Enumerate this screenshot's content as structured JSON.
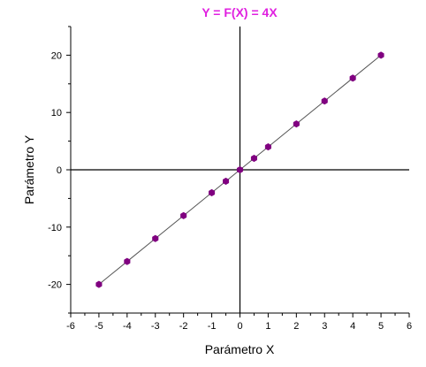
{
  "chart_data": {
    "type": "scatter",
    "title": "Y = F(X) = 4X",
    "xlabel": "Parámetro X",
    "ylabel": "Parámetro Y",
    "xlim": [
      -6,
      6
    ],
    "ylim": [
      -25,
      25
    ],
    "x_ticks": [
      -6,
      -5,
      -4,
      -3,
      -2,
      -1,
      0,
      1,
      2,
      3,
      4,
      5,
      6
    ],
    "y_ticks": [
      -20,
      -10,
      0,
      10,
      20
    ],
    "x_tick_labels": [
      "-6",
      "-5",
      "-4",
      "-3",
      "-2",
      "-1",
      "0",
      "1",
      "2",
      "3",
      "4",
      "5",
      "6"
    ],
    "y_tick_labels": [
      "-20",
      "-10",
      "0",
      "10",
      "20"
    ],
    "grid": false,
    "zero_axes": true,
    "series": [
      {
        "x": [
          -5,
          -4,
          -3,
          -2,
          -1,
          -0.5,
          0,
          0.5,
          1,
          2,
          3,
          4,
          5
        ],
        "y": [
          -20,
          -16,
          -12,
          -8,
          -4,
          -2,
          0,
          2,
          4,
          8,
          12,
          16,
          20
        ],
        "marker": "hexagon",
        "line": true
      }
    ],
    "colors": {
      "title": "#e020e0",
      "marker": "#800080",
      "line": "#555555",
      "axis": "#000000"
    }
  }
}
